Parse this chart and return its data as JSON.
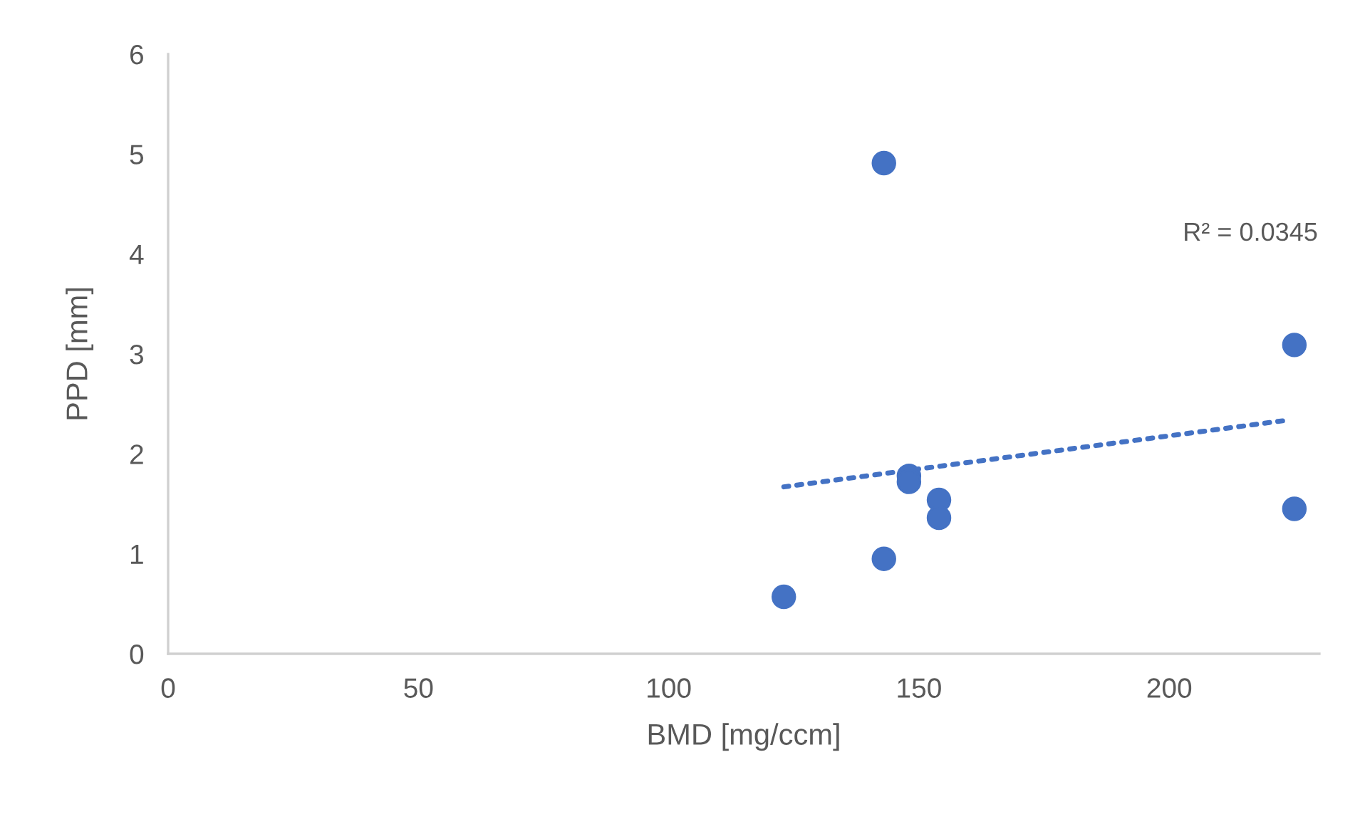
{
  "chart_data": {
    "type": "scatter",
    "xlabel": "BMD [mg/ccm]",
    "ylabel": "PPD [mm]",
    "x": [
      123,
      143,
      143,
      148,
      148,
      154,
      154,
      225,
      225
    ],
    "series": [
      {
        "color": "#4472c4",
        "marker": "circle",
        "values": [
          0.57,
          4.91,
          0.95,
          1.78,
          1.72,
          1.54,
          1.36,
          3.09,
          1.45
        ]
      },
      {
        "type": "line",
        "color": "#4472c4",
        "line_style": "dotted",
        "marker": "none",
        "x": [
          123,
          224
        ],
        "values": [
          1.67,
          2.34
        ]
      }
    ],
    "annotations": [
      "R² = 0.0345"
    ],
    "xlim": [
      0,
      230
    ],
    "ylim": [
      0,
      6
    ],
    "xticks": [
      0,
      50,
      100,
      150,
      200
    ],
    "yticks": [
      0,
      1,
      2,
      3,
      4,
      5,
      6
    ],
    "grid": false,
    "legend": false
  }
}
